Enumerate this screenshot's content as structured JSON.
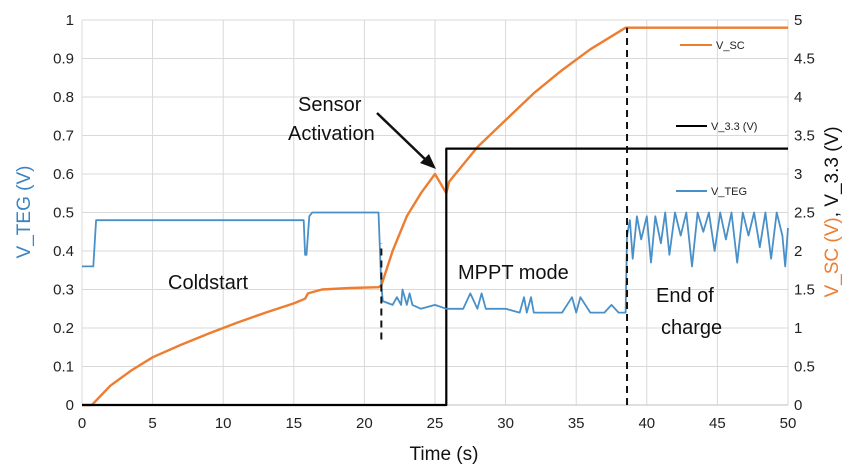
{
  "chart_data": {
    "type": "line",
    "xlabel": "Time (s)",
    "ylabel_left": "V_TEG (V)",
    "ylabel_right_part1": "V_SC (V)",
    "ylabel_right_part2": ", V_3.3 (V)",
    "xlim": [
      0,
      50
    ],
    "ylim_left": [
      0,
      1
    ],
    "ylim_right": [
      0,
      5
    ],
    "grid": true,
    "x_ticks": [
      "0",
      "5",
      "10",
      "15",
      "20",
      "25",
      "30",
      "35",
      "40",
      "45",
      "50"
    ],
    "y_left_ticks": [
      "0",
      "0.1",
      "0.2",
      "0.3",
      "0.4",
      "0.5",
      "0.6",
      "0.7",
      "0.8",
      "0.9",
      "1"
    ],
    "y_right_ticks": [
      "0",
      "0.5",
      "1",
      "1.5",
      "2",
      "2.5",
      "3",
      "3.5",
      "4",
      "4.5",
      "5"
    ],
    "colors": {
      "V_TEG": "#4a90c8",
      "V_SC": "#ed7d31",
      "V_3.3": "#000000"
    },
    "series": [
      {
        "name": "V_SC",
        "axis": "right",
        "x": [
          0,
          0.7,
          2,
          3.5,
          5,
          7,
          9,
          11,
          13,
          15,
          15.8,
          16,
          17,
          19,
          21,
          21.2,
          22,
          23,
          24,
          25,
          25.8,
          26,
          28,
          30,
          32,
          34,
          36,
          38.5,
          40,
          45,
          50
        ],
        "y": [
          0,
          0,
          0.25,
          0.45,
          0.62,
          0.78,
          0.93,
          1.07,
          1.2,
          1.32,
          1.38,
          1.45,
          1.5,
          1.52,
          1.53,
          1.55,
          2.0,
          2.45,
          2.75,
          3.0,
          2.75,
          2.9,
          3.35,
          3.7,
          4.05,
          4.35,
          4.62,
          4.9,
          4.9,
          4.9,
          4.9
        ]
      },
      {
        "name": "V_3.3 (V)",
        "axis": "right",
        "x": [
          0,
          25.8,
          25.8,
          50
        ],
        "y": [
          0,
          0,
          3.33,
          3.33
        ]
      },
      {
        "name": "V_TEG",
        "axis": "left",
        "x": [
          0,
          0.8,
          1,
          5,
          10,
          15.7,
          15.8,
          15.9,
          16.1,
          16.3,
          18,
          20,
          21,
          21.2,
          21.3,
          22,
          22.3,
          22.6,
          22.7,
          23,
          23.2,
          23.4,
          24,
          25,
          25.8,
          26,
          27,
          27.5,
          28,
          28.3,
          28.6,
          29,
          30,
          31,
          31.3,
          31.5,
          31.8,
          32,
          33,
          34,
          34.7,
          35,
          35.3,
          36,
          37,
          37.5,
          38,
          38.5,
          38.6,
          38.8,
          39,
          39.3,
          39.6,
          40,
          40.3,
          40.6,
          41,
          41.3,
          41.6,
          42,
          42.4,
          42.8,
          43.2,
          43.6,
          44,
          44.4,
          44.8,
          45.2,
          45.6,
          46,
          46.4,
          46.8,
          47.2,
          47.6,
          48,
          48.4,
          48.8,
          49.2,
          49.6,
          49.8,
          50
        ],
        "y": [
          0.36,
          0.36,
          0.48,
          0.48,
          0.48,
          0.48,
          0.39,
          0.39,
          0.49,
          0.5,
          0.5,
          0.5,
          0.5,
          0.31,
          0.27,
          0.26,
          0.28,
          0.26,
          0.3,
          0.26,
          0.29,
          0.26,
          0.25,
          0.26,
          0.25,
          0.25,
          0.25,
          0.29,
          0.25,
          0.29,
          0.25,
          0.25,
          0.25,
          0.24,
          0.28,
          0.24,
          0.28,
          0.24,
          0.24,
          0.24,
          0.28,
          0.24,
          0.28,
          0.24,
          0.24,
          0.26,
          0.24,
          0.24,
          0.44,
          0.48,
          0.38,
          0.49,
          0.43,
          0.49,
          0.37,
          0.49,
          0.42,
          0.5,
          0.39,
          0.5,
          0.44,
          0.5,
          0.36,
          0.5,
          0.45,
          0.5,
          0.4,
          0.5,
          0.43,
          0.5,
          0.37,
          0.5,
          0.44,
          0.5,
          0.41,
          0.5,
          0.38,
          0.5,
          0.44,
          0.36,
          0.46
        ]
      }
    ],
    "markers": [
      {
        "x": 21.2,
        "y_from": 0.17,
        "y_to": 0.42
      },
      {
        "x": 38.6,
        "y_from": 0.0,
        "y_to": 0.98
      }
    ],
    "annotations": {
      "sensor_line1": "Sensor",
      "sensor_line2": "Activation",
      "coldstart": "Coldstart",
      "mppt": "MPPT mode",
      "end_line1": "End of",
      "end_line2": "charge"
    },
    "legend": [
      {
        "label": "V_SC",
        "series": "V_SC"
      },
      {
        "label": "V_3.3 (V)",
        "series": "V_3.3 (V)"
      },
      {
        "label": "V_TEG",
        "series": "V_TEG"
      }
    ]
  }
}
